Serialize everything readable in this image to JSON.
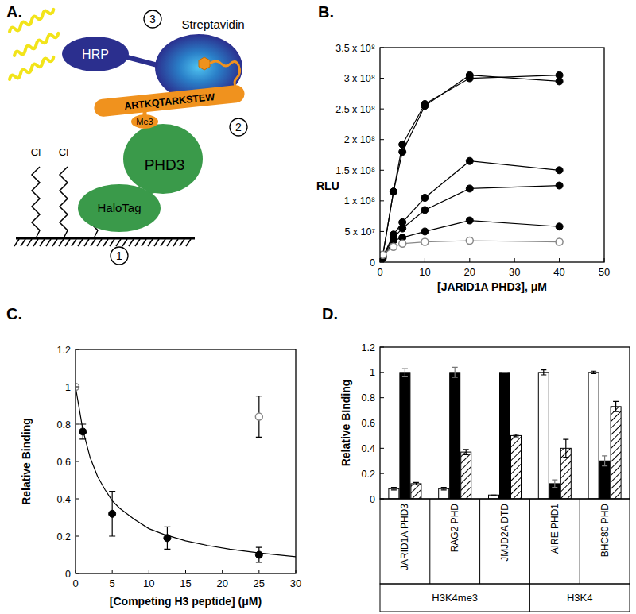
{
  "diagram": {
    "panel": "A.",
    "hrp": "HRP",
    "streptavidin": "Streptavidin",
    "peptide": "ARTKQTARKSTEW",
    "modification": "Me3",
    "reader": "PHD3",
    "tag": "HaloTag",
    "linker_atoms": [
      "Cl",
      "Cl"
    ],
    "steps": [
      "1",
      "2",
      "3"
    ]
  },
  "chart_data": [
    {
      "panel": "B.",
      "type": "line",
      "xlabel": "[JARID1A PHD3], μM",
      "ylabel": "RLU",
      "x": [
        0.6,
        3,
        5,
        10,
        20,
        40
      ],
      "xlim": [
        0,
        50
      ],
      "xticks": [
        0,
        10,
        20,
        30,
        40,
        50
      ],
      "ylim": [
        0,
        350000000
      ],
      "yticks": [
        0,
        {
          "value": 50000000,
          "label": "5 x 10⁷"
        },
        {
          "value": 100000000,
          "label": "1 x 10⁸"
        },
        {
          "value": 150000000,
          "label": "1.5 x 10⁸"
        },
        {
          "value": 200000000,
          "label": "2 x 10⁸"
        },
        {
          "value": 250000000,
          "label": "2.5 x 10⁸"
        },
        {
          "value": 300000000,
          "label": "3 x 10⁸"
        },
        {
          "value": 350000000,
          "label": "3.5 x 10⁸"
        }
      ],
      "series": [
        {
          "color": "#000000",
          "marker": "circle",
          "values": [
            10000000,
            115000000,
            180000000,
            255000000,
            305000000,
            295000000
          ]
        },
        {
          "color": "#000000",
          "marker": "circle",
          "values": [
            10000000,
            115000000,
            192000000,
            258000000,
            300000000,
            305000000
          ]
        },
        {
          "color": "#000000",
          "marker": "circle",
          "values": [
            8000000,
            45000000,
            65000000,
            105000000,
            165000000,
            150000000
          ]
        },
        {
          "color": "#000000",
          "marker": "circle",
          "values": [
            8000000,
            40000000,
            55000000,
            85000000,
            120000000,
            125000000
          ]
        },
        {
          "color": "#000000",
          "marker": "circle",
          "values": [
            6000000,
            35000000,
            40000000,
            50000000,
            68000000,
            58000000
          ]
        },
        {
          "color": "#888888",
          "marker": "open-circle",
          "values": [
            12000000,
            25000000,
            30000000,
            33000000,
            35000000,
            33000000
          ]
        }
      ]
    },
    {
      "panel": "C.",
      "type": "scatter",
      "xlabel": "[Competing H3 peptide] (μM)",
      "ylabel": "Relative Binding",
      "xlim": [
        0,
        30
      ],
      "xticks": [
        0,
        5,
        10,
        15,
        20,
        25,
        30
      ],
      "ylim": [
        0,
        1.2
      ],
      "yticks": [
        0,
        0.2,
        0.4,
        0.6,
        0.8,
        1,
        1.2
      ],
      "series": [
        {
          "type": "scatter",
          "color": "#000000",
          "marker": "circle",
          "x": [
            1,
            5,
            12.5,
            25
          ],
          "values": [
            0.76,
            0.32,
            0.19,
            0.1
          ],
          "errors": [
            0.04,
            0.12,
            0.06,
            0.04
          ]
        },
        {
          "type": "scatter",
          "color": "#888888",
          "marker": "open-circle",
          "x": [
            0,
            25
          ],
          "values": [
            1,
            0.84
          ],
          "errors": [
            0,
            0.11
          ]
        },
        {
          "type": "line",
          "color": "#000000",
          "marker": "none",
          "x": [
            0,
            1,
            2,
            3,
            4,
            5,
            6,
            8,
            10,
            12,
            15,
            18,
            21,
            25,
            30
          ],
          "values": [
            1,
            0.77,
            0.62,
            0.52,
            0.45,
            0.39,
            0.35,
            0.29,
            0.24,
            0.21,
            0.175,
            0.15,
            0.13,
            0.11,
            0.09
          ]
        }
      ]
    },
    {
      "panel": "D.",
      "type": "bar",
      "ylabel": "Relative BInding",
      "categories": [
        "JARID1A PHD3",
        "RAG2 PHD",
        "JMJD2A DTD",
        "AIRE PHD1",
        "BHC80 PHD"
      ],
      "groups": [
        {
          "label": "H3K4me3",
          "count": 3
        },
        {
          "label": "H3K4",
          "count": 2
        }
      ],
      "ylim": [
        0,
        1.2
      ],
      "yticks": [
        0,
        0.2,
        0.4,
        0.6,
        0.8,
        1,
        1.2
      ],
      "series": [
        {
          "color": "#ffffff",
          "marker": "solid",
          "values": [
            0.08,
            0.08,
            0.03,
            1,
            1
          ],
          "errors": [
            0.01,
            0.01,
            0,
            0.02,
            0.01
          ]
        },
        {
          "color": "#000000",
          "marker": "solid",
          "values": [
            1,
            1,
            1,
            0.12,
            0.3
          ],
          "errors": [
            0.03,
            0.04,
            0,
            0.03,
            0.04
          ]
        },
        {
          "color": "#000000",
          "marker": "hatch",
          "values": [
            0.12,
            0.37,
            0.5,
            0.4,
            0.73
          ],
          "errors": [
            0.01,
            0.02,
            0.01,
            0.07,
            0.04
          ]
        }
      ]
    }
  ]
}
